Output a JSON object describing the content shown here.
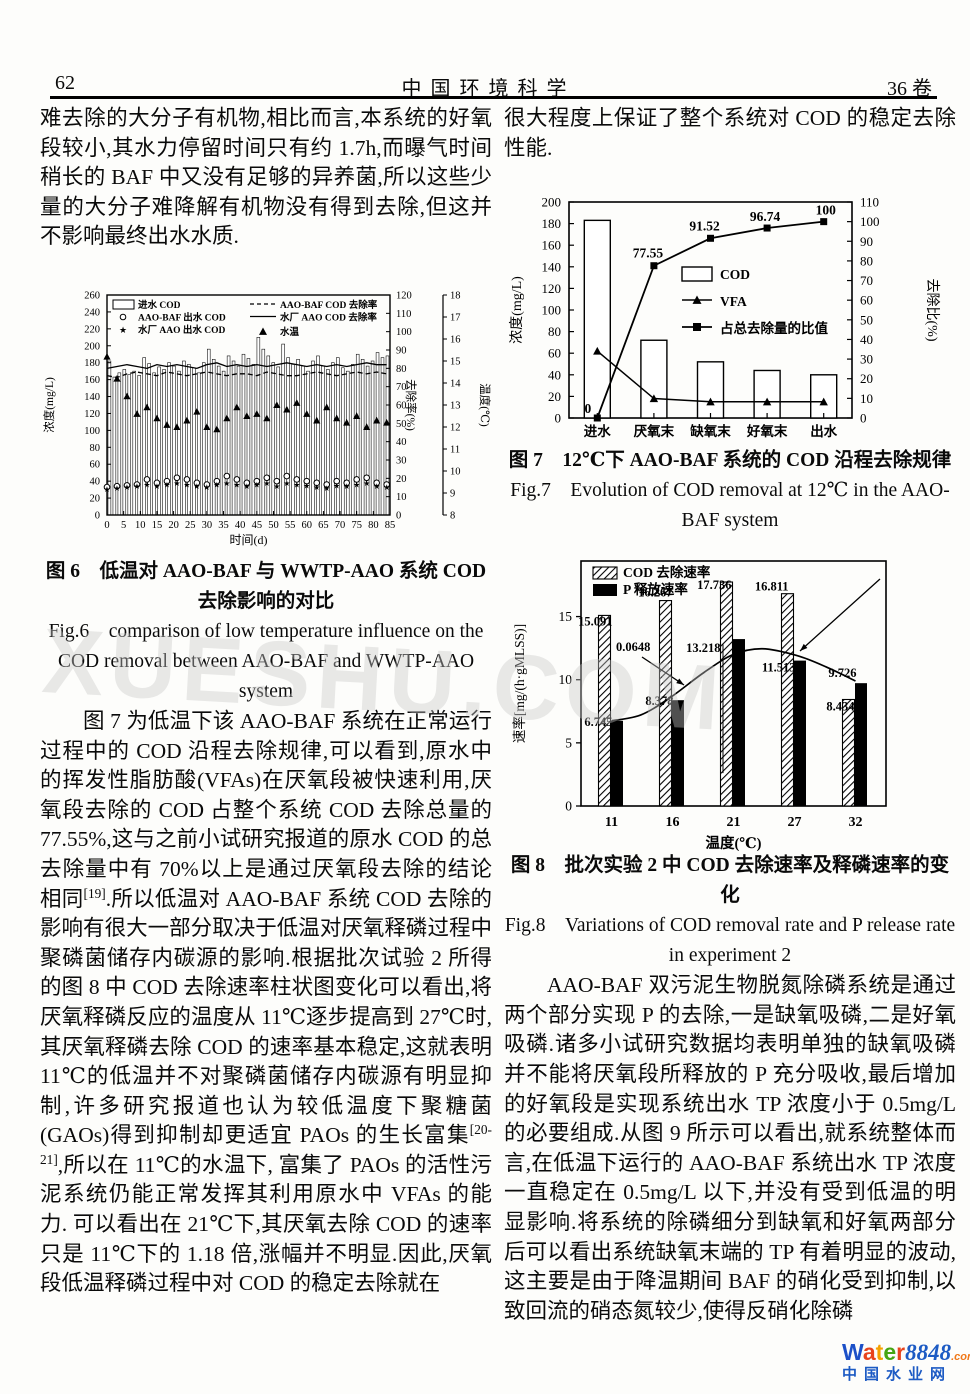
{
  "header": {
    "page_number": "62",
    "journal": "中  国  环  境  科  学",
    "volume": "36 卷"
  },
  "watermark": "XUESHU.COM",
  "left": {
    "para1": "难去除的大分子有机物,相比而言,本系统的好氧段较小,其水力停留时间只有约 1.7h,而曝气时间稍长的 BAF 中又没有足够的异养菌,所以这些少量的大分子难降解有机物没有得到去除,但这并不影响最终出水水质.",
    "fig6_cap_zh": "图 6　低温对 AAO-BAF 与 WWTP-AAO 系统 COD 去除影响的对比",
    "fig6_cap_en": "Fig.6　comparison of low temperature influence on the COD removal between AAO-BAF and WWTP-AAO system",
    "para2_part1": "图 7 为低温下该 AAO-BAF 系统在正常运行过程中的 COD 沿程去除规律,可以看到,原水中的挥发性脂肪酸(VFAs)在厌氧段被快速利用,厌氧段去除的 COD 占整个系统 COD 去除总量的 77.55%,这与之前小试研究报道的原水 COD 的总去除量中有 70%以上是通过厌氧段去除的结论相同",
    "para2_sup1": "[19]",
    "para2_part2": ".所以低温对 AAO-BAF 系统 COD 去除的影响有很大一部分取决于低温对厌氧释磷过程中聚磷菌储存内碳源的影响.根据批次试验 2 所得的图 8 中 COD 去除速率柱状图变化可以看出,将厌氧释磷反应的温度从 11℃逐步提高到 27℃时,其厌氧释磷去除 COD 的速率基本稳定,这就表明 11℃的低温并不对聚磷菌储存内碳源有明显抑制,许多研究报道也认为较低温度下聚糖菌(GAOs)得到抑制却更适宜 PAOs 的生长富集",
    "para2_sup2": "[20-21]",
    "para2_part3": ",所以在 11℃的水温下, 富集了 PAOs 的活性污泥系统仍能正常发挥其利用原水中 VFAs 的能力. 可以看出在 21℃下,其厌氧去除 COD 的速率只是 11℃下的 1.18 倍,涨幅并不明显.因此,厌氧段低温释磷过程中对 COD 的稳定去除就在"
  },
  "right": {
    "para1": "很大程度上保证了整个系统对 COD 的稳定去除性能.",
    "fig7_cap_zh": "图 7　12℃下 AAO-BAF 系统的 COD 沿程去除规律",
    "fig7_cap_en": "Fig.7　Evolution of COD removal at 12℃  in the AAO-BAF system",
    "fig8_cap_zh": "图 8　批次实验 2 中 COD 去除速率及释磷速率的变化",
    "fig8_cap_en": "Fig.8　Variations of COD removal rate and P release rate in experiment 2",
    "para2": "AAO-BAF 双污泥生物脱氮除磷系统是通过两个部分实现 P 的去除,一是缺氧吸磷,二是好氧吸磷.诸多小试研究数据均表明单独的缺氧吸磷并不能将厌氧段所释放的 P 充分吸收,最后增加的好氧段是实现系统出水 TP 浓度小于 0.5mg/L 的必要组成.从图 9 所示可以看出,就系统整体而言,在低温下运行的 AAO-BAF 系统出水 TP 浓度一直稳定在 0.5mg/L 以下,并没有受到低温的明显影响.将系统的除磷细分到缺氧和好氧两部分后可以看出系统缺氧末端的 TP 有着明显的波动,这主要是由于降温期间 BAF 的硝化受到抑制,以致回流的硝态氮较少,使得反硝化除磷"
  },
  "footer_logo": {
    "l1": "W",
    "l2": "a",
    "l3": "t",
    "l4": "e",
    "l5": "r",
    "number": "8848",
    "domain": ".com",
    "tagline": "中国水业网",
    "brand_colors": [
      "#1c50c8",
      "#e8431c",
      "#f5a100",
      "#45a512",
      "#e8431c"
    ],
    "blue": "#1d5bc4",
    "orange": "#f07818"
  },
  "chart_data": {
    "fig6": {
      "type": "composite-timeseries",
      "xlabel": "时间(d)",
      "x_range": [
        0,
        85,
        5
      ],
      "y_left_label": "浓度(mg/L)",
      "y_left_range": [
        0,
        260,
        20
      ],
      "y_right_label": "去除率(%)",
      "y_right_range": [
        0,
        120,
        10
      ],
      "y_temp_label": "温度(℃)",
      "y_temp_range": [
        8,
        18,
        1
      ],
      "legend": [
        "进水 COD",
        "AAO-BAF 出水 COD",
        "水厂 AAO 出水 COD",
        "AAO-BAF COD 去除率",
        "水厂 AAO COD 去除率",
        "水温"
      ],
      "bar_day_step": 1.5,
      "marker_day_step": 3,
      "inflow_cod_bars": [
        182,
        163,
        168,
        172,
        166,
        170,
        165,
        186,
        179,
        168,
        175,
        172,
        180,
        176,
        170,
        182,
        178,
        174,
        168,
        180,
        196,
        184,
        176,
        170,
        188,
        182,
        176,
        190,
        185,
        178,
        210,
        196,
        188,
        180,
        175,
        202,
        186,
        178,
        184,
        176,
        170,
        182,
        188,
        176,
        172,
        180,
        186,
        174,
        170,
        178,
        190,
        184,
        176,
        182,
        192,
        186,
        188
      ],
      "effluent_aao_baf": [
        33,
        34,
        35,
        36,
        42,
        38,
        40,
        44,
        42,
        38,
        36,
        40,
        46,
        42,
        38,
        40,
        44,
        40,
        46,
        42,
        40,
        38,
        36,
        40,
        38,
        42,
        44,
        38,
        36
      ],
      "effluent_wwtp_aao": [
        31,
        32,
        33,
        34,
        36,
        34,
        36,
        38,
        36,
        34,
        33,
        36,
        38,
        36,
        34,
        36,
        38,
        34,
        38,
        36,
        35,
        33,
        32,
        35,
        34,
        36,
        38,
        34,
        33
      ],
      "removal_aao_baf": [
        76,
        75,
        77,
        78,
        77,
        76,
        78,
        77,
        76,
        77,
        78,
        77,
        76,
        77,
        77,
        76,
        78,
        77,
        76,
        76,
        77,
        78,
        77,
        76,
        77,
        78,
        77,
        78,
        77
      ],
      "removal_wwtp_aao": [
        80,
        81,
        82,
        81,
        80,
        82,
        81,
        82,
        81,
        80,
        82,
        83,
        81,
        82,
        81,
        82,
        81,
        82,
        83,
        82,
        81,
        82,
        81,
        82,
        81,
        82,
        83,
        82,
        82
      ],
      "water_temp": [
        15.2,
        14.2,
        13.4,
        12.6,
        12.9,
        12.4,
        12.1,
        12.0,
        12.3,
        12.7,
        12.0,
        11.9,
        12.4,
        12.9,
        12.5,
        12.6,
        12.4,
        13.0,
        12.8,
        13.1,
        12.6,
        12.3,
        12.9,
        12.4,
        12.2,
        12.5,
        12.0,
        12.3,
        12.2
      ]
    },
    "fig7": {
      "type": "bar+line",
      "categories": [
        "进水",
        "厌氧末",
        "缺氧末",
        "好氧末",
        "出水"
      ],
      "cod_bars": [
        183,
        72,
        52,
        44,
        40
      ],
      "vfa_line": [
        62,
        18,
        15,
        15,
        15
      ],
      "ratio_line": [
        0,
        77.55,
        91.52,
        96.74,
        100
      ],
      "ratio_labels": [
        "0",
        "77.55",
        "91.52",
        "96.74",
        "100"
      ],
      "legend": [
        "COD",
        "VFA",
        "占总去除量的比值"
      ],
      "y_left_label": "浓度(mg/L)",
      "y_left_range": [
        0,
        200,
        20
      ],
      "y_right_label": "去除比(%)",
      "y_right_range": [
        0,
        110,
        10
      ]
    },
    "fig8": {
      "type": "grouped-bar+curve",
      "categories": [
        "11",
        "16",
        "21",
        "27",
        "32"
      ],
      "xlabel": "温度(℃)",
      "ylabel": "速率[mg/(h·gMLSS)]",
      "y_ticks": [
        0,
        5,
        10,
        15
      ],
      "y_max": 19.4,
      "series": [
        {
          "name": "COD 去除速率",
          "pattern": "hatched",
          "values": [
            15.091,
            16.267,
            17.736,
            16.811,
            8.434
          ]
        },
        {
          "name": "P 释放速率",
          "pattern": "solid",
          "values": [
            6.745,
            8.378,
            13.218,
            11.513,
            9.726
          ]
        }
      ],
      "fit_curve": [
        [
          11,
          6.745
        ],
        [
          13.5,
          7.2
        ],
        [
          16,
          8.55
        ],
        [
          19,
          10.6
        ],
        [
          21.5,
          12.0
        ],
        [
          24,
          12.45
        ],
        [
          27,
          11.9
        ],
        [
          29.5,
          11.0
        ],
        [
          32,
          9.9
        ]
      ],
      "annotation": "0.0648"
    }
  }
}
